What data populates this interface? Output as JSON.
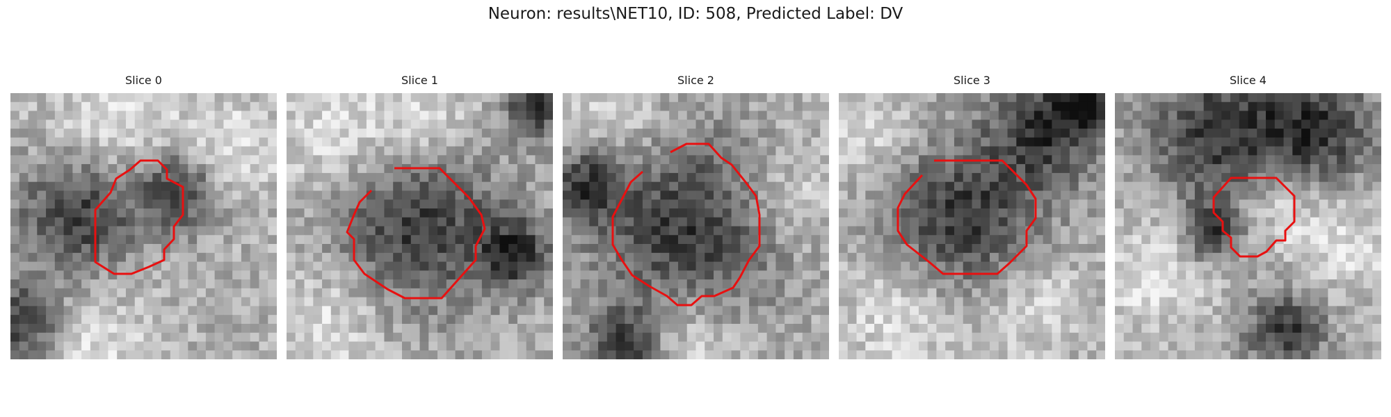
{
  "title": "Neuron: results\\NET10, ID: 508, Predicted Label: DV",
  "panels": [
    {
      "label": "Slice 0"
    },
    {
      "label": "Slice 1"
    },
    {
      "label": "Slice 2"
    },
    {
      "label": "Slice 3"
    },
    {
      "label": "Slice 4"
    }
  ],
  "colors": {
    "contour": "#e81010",
    "background": "#ffffff"
  }
}
